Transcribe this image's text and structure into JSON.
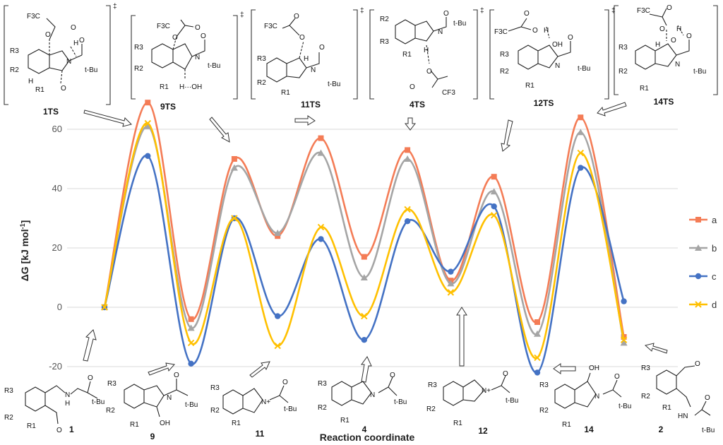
{
  "chart_data": {
    "type": "line",
    "ylabel": "ΔG [kJ mol",
    "ylabel_sup": "-1",
    "ylabel_end": "]",
    "xlabel": "Reaction coordinate",
    "ylim": [
      -25,
      70
    ],
    "yticks": [
      -20,
      0,
      20,
      40,
      60
    ],
    "grid": true,
    "legend_placement": "right",
    "x": [
      1,
      2,
      3,
      4,
      5,
      6,
      7,
      8,
      9,
      10,
      11,
      12,
      13
    ],
    "series": [
      {
        "name": "a",
        "color": "#f47c56",
        "marker": "square",
        "values": [
          0,
          69,
          -4,
          50,
          24,
          57,
          17,
          53,
          9,
          44,
          -5,
          64,
          -10
        ]
      },
      {
        "name": "b",
        "color": "#a5a5a5",
        "marker": "triangle",
        "values": [
          0,
          61,
          -7,
          47,
          25,
          52,
          10,
          50,
          8,
          39,
          -9,
          59,
          -12
        ]
      },
      {
        "name": "c",
        "color": "#4472c4",
        "marker": "circle",
        "values": [
          0,
          51,
          -19,
          30,
          -3,
          23,
          -11,
          29,
          12,
          34,
          -22,
          47,
          2
        ]
      },
      {
        "name": "d",
        "color": "#ffc000",
        "marker": "x",
        "values": [
          0,
          62,
          -12,
          30,
          -13,
          27,
          -3,
          33,
          5,
          31,
          -17,
          52,
          -11
        ]
      }
    ],
    "ts_labels": [
      "1TS",
      "9TS",
      "11TS",
      "4TS",
      "12TS",
      "14TS"
    ],
    "int_labels": [
      "1",
      "9",
      "11",
      "4",
      "12",
      "14",
      "2"
    ]
  },
  "structure_text": {
    "t1": {
      "f3c": "F3C",
      "o": "O",
      "h": "H",
      "n": "N",
      "tbu": "t-Bu",
      "r1": "R1",
      "r2": "R2",
      "r3": "R3",
      "dagger": "‡"
    },
    "t9": {
      "f3c": "F3C",
      "o": "O",
      "oh": "H···OH",
      "n": "N",
      "tbu": "t-Bu",
      "r1": "R1",
      "r2": "R2",
      "r3": "R3",
      "dagger": "‡"
    },
    "t11": {
      "f3c": "F3C",
      "o": "O",
      "h": "H",
      "n": "N",
      "tbu": "t-Bu",
      "r1": "R1",
      "r2": "R2",
      "r3": "R3",
      "dagger": "‡"
    },
    "t4": {
      "f3c": "CF3",
      "o": "O",
      "h": "H",
      "n": "N",
      "tbu": "t-Bu",
      "r1": "R1",
      "r2": "R2",
      "r3": "R3",
      "dagger": "‡"
    },
    "t12": {
      "f3c": "F3C",
      "o": "O",
      "h": "H",
      "oh": "OH",
      "n": "N",
      "tbu": "t-Bu",
      "r1": "R1",
      "r2": "R2",
      "r3": "R3",
      "dagger": "‡"
    },
    "t14": {
      "f3c": "F3C",
      "o": "O",
      "h": "H",
      "n": "N",
      "tbu": "t-Bu",
      "r1": "R1",
      "r2": "R2",
      "r3": "R3",
      "dagger": "‡"
    },
    "m1": {
      "n": "N",
      "h": "H",
      "o": "O",
      "tbu": "t-Bu",
      "r1": "R1",
      "r2": "R2",
      "r3": "R3"
    },
    "m9": {
      "n": "N",
      "oh": "OH",
      "o": "O",
      "tbu": "t-Bu",
      "r1": "R1",
      "r2": "R2",
      "r3": "R3"
    },
    "m11": {
      "n": "N+",
      "o": "O",
      "tbu": "t-Bu",
      "r1": "R1",
      "r2": "R2",
      "r3": "R3"
    },
    "m4": {
      "n": "N",
      "o": "O",
      "tbu": "t-Bu",
      "r1": "R1",
      "r2": "R2",
      "r3": "R3"
    },
    "m12": {
      "n": "N+",
      "o": "O",
      "tbu": "t-Bu",
      "r1": "R1",
      "r2": "R2",
      "r3": "R3"
    },
    "m14": {
      "n": "N",
      "oh": "OH",
      "o": "O",
      "tbu": "t-Bu",
      "r1": "R1",
      "r2": "R2",
      "r3": "R3"
    },
    "m2": {
      "hn": "HN",
      "o": "O",
      "tbu": "t-Bu",
      "r1": "R1",
      "r2": "R2",
      "r3": "R3"
    }
  }
}
